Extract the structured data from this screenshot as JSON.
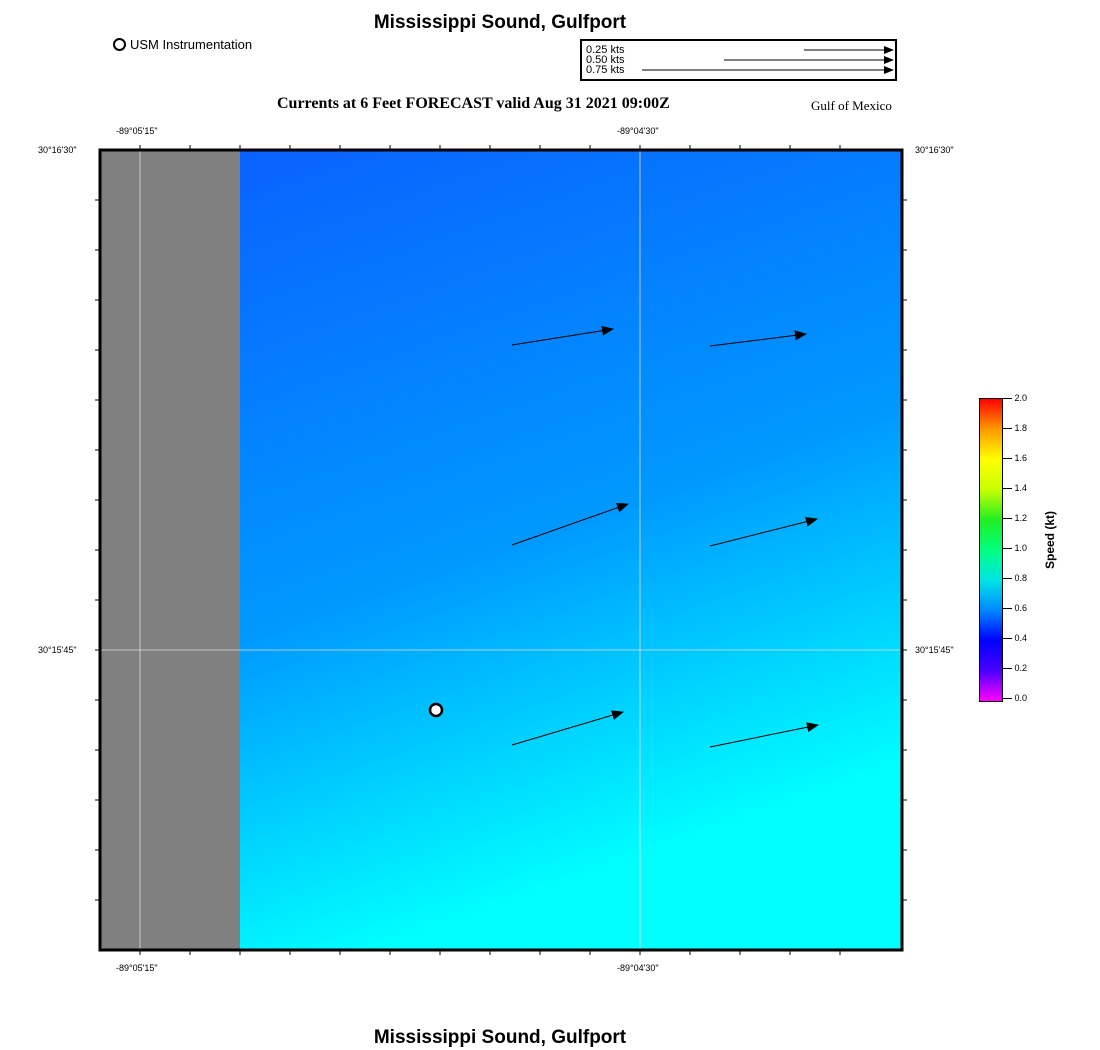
{
  "header": {
    "title": "Mississippi Sound, Gulfport",
    "subtitle": "Currents at 6 Feet FORECAST valid Aug 31 2021 09:00Z",
    "region": "Gulf of Mexico"
  },
  "legend": {
    "station_label": "USM Instrumentation",
    "scale_labels": [
      "0.25 kts",
      "0.50 kts",
      "0.75 kts"
    ]
  },
  "axes": {
    "lon_left": "-89°05'15\"",
    "lon_right": "-89°04'30\"",
    "lat_top": "30°16'30\"",
    "lat_mid": "30°15'45\""
  },
  "colorbar": {
    "label": "Speed (kt)",
    "ticks": [
      "2.0",
      "1.8",
      "1.6",
      "1.4",
      "1.2",
      "1.0",
      "0.8",
      "0.6",
      "0.4",
      "0.2",
      "0.0"
    ],
    "min": 0.0,
    "max": 2.0
  },
  "footer": {
    "title": "Mississippi Sound, Gulfport"
  },
  "colors": {
    "land": "#808080",
    "water_top": "#0a5cff",
    "water_mid": "#0099ff",
    "water_bottom": "#00ffff"
  }
}
